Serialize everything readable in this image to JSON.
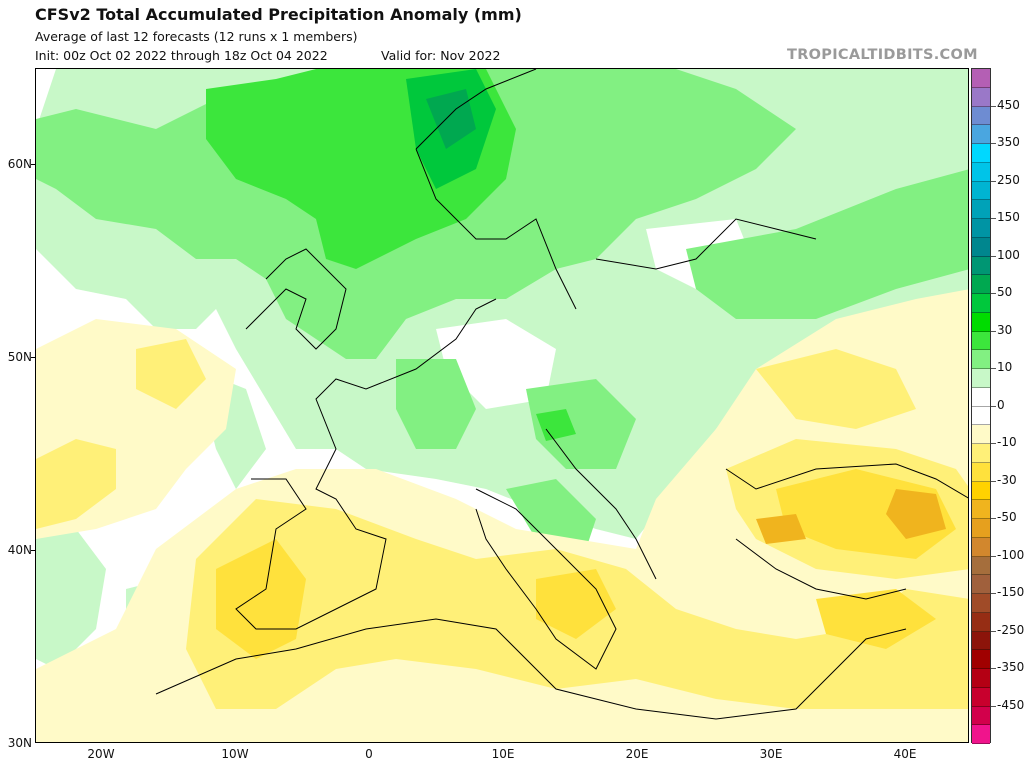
{
  "header": {
    "title": "CFSv2 Total Accumulated Precipitation Anomaly (mm)",
    "subtitle": "Average of last 12 forecasts (12 runs x 1 members)",
    "init": "Init: 00z Oct 02 2022 through 18z Oct 04 2022",
    "valid": "Valid for: Nov 2022",
    "watermark": "TROPICALTIDBITS.COM"
  },
  "map": {
    "lat_labels": [
      "60N",
      "50N",
      "40N",
      "30N"
    ],
    "lon_labels": [
      "20W",
      "10W",
      "0",
      "10E",
      "20E",
      "30E",
      "40E"
    ]
  },
  "colorbar": {
    "labels": [
      "450",
      "350",
      "250",
      "150",
      "100",
      "50",
      "30",
      "10",
      "0",
      "-10",
      "-30",
      "-50",
      "-100",
      "-150",
      "-250",
      "-350",
      "-450"
    ],
    "colors": [
      "#b45fb4",
      "#9a78c8",
      "#6e8cd2",
      "#4aa6e0",
      "#00d8ff",
      "#00c4e8",
      "#00b4d2",
      "#00a2b8",
      "#0094a4",
      "#00868e",
      "#009673",
      "#00a850",
      "#00c83c",
      "#00dc00",
      "#3ce63c",
      "#82f082",
      "#c8f8c8",
      "#ffffff",
      "#ffffff",
      "#fffac8",
      "#fff078",
      "#ffe13c",
      "#ffd200",
      "#f0b41e",
      "#e6a01e",
      "#d2872d",
      "#a56e3c",
      "#a0603c",
      "#a04b28",
      "#962d14",
      "#8c140a",
      "#a00000",
      "#b40014",
      "#c8002d",
      "#d2004b",
      "#f0148c"
    ]
  }
}
